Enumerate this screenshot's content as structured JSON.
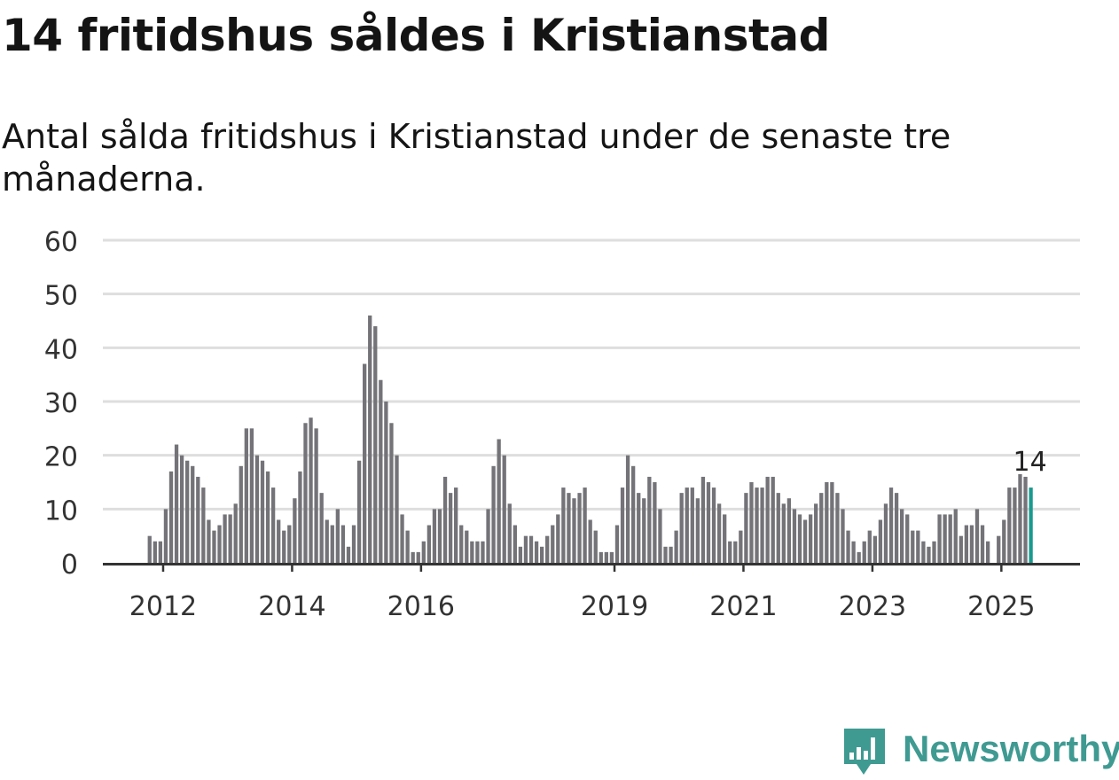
{
  "title": "14 fritidshus såldes i Kristianstad",
  "subtitle": "Antal sålda fritidshus i Kristianstad under de senaste tre månaderna.",
  "brand": {
    "name": "Newsworthy",
    "color": "#3f9a92"
  },
  "colors": {
    "bar": "#747378",
    "highlight": "#1a9a8f",
    "grid": "#dedede",
    "axis": "#333333",
    "text": "#333333"
  },
  "chart_data": {
    "type": "bar",
    "title": "14 fritidshus såldes i Kristianstad",
    "xlabel": "",
    "ylabel": "",
    "ylim": [
      0,
      60
    ],
    "yticks": [
      0,
      10,
      20,
      30,
      40,
      50,
      60
    ],
    "grid": true,
    "x_tick_labels": [
      {
        "label": "2012",
        "year": 2012
      },
      {
        "label": "2014",
        "year": 2014
      },
      {
        "label": "2016",
        "year": 2016
      },
      {
        "label": "2019",
        "year": 2019
      },
      {
        "label": "2021",
        "year": 2021
      },
      {
        "label": "2023",
        "year": 2023
      },
      {
        "label": "2025",
        "year": 2025
      }
    ],
    "start_month": "2011-10",
    "values": [
      5,
      4,
      4,
      10,
      17,
      22,
      20,
      19,
      18,
      16,
      14,
      8,
      6,
      7,
      9,
      9,
      11,
      18,
      25,
      25,
      20,
      19,
      17,
      14,
      8,
      6,
      7,
      12,
      17,
      26,
      27,
      25,
      13,
      8,
      7,
      10,
      7,
      3,
      7,
      19,
      37,
      46,
      44,
      34,
      30,
      26,
      20,
      9,
      6,
      2,
      2,
      4,
      7,
      10,
      10,
      16,
      13,
      14,
      7,
      6,
      4,
      4,
      4,
      10,
      18,
      23,
      20,
      11,
      7,
      3,
      5,
      5,
      4,
      3,
      5,
      7,
      9,
      14,
      13,
      12,
      13,
      14,
      8,
      6,
      2,
      2,
      2,
      7,
      14,
      20,
      18,
      13,
      12,
      16,
      15,
      10,
      3,
      3,
      6,
      13,
      14,
      14,
      12,
      16,
      15,
      14,
      11,
      9,
      4,
      4,
      6,
      13,
      15,
      14,
      14,
      16,
      16,
      13,
      11,
      12,
      10,
      9,
      8,
      9,
      11,
      13,
      15,
      15,
      13,
      10,
      6,
      4,
      2,
      4,
      6,
      5,
      8,
      11,
      14,
      13,
      10,
      9,
      6,
      6,
      4,
      3,
      4,
      9,
      9,
      9,
      10,
      5,
      7,
      7,
      10,
      7,
      4,
      0,
      5,
      8,
      14,
      14,
      16.5,
      16,
      14
    ],
    "highlight": {
      "index": 164,
      "label": "14",
      "value": 14
    }
  }
}
